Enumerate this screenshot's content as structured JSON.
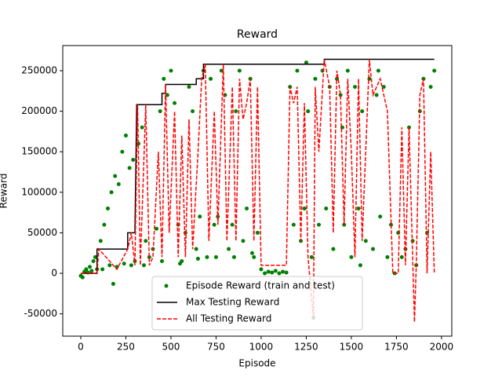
{
  "chart_data": {
    "type": "scatter_line",
    "title": "Reward",
    "xlabel": "Episode",
    "ylabel": "Reward",
    "xlim": [
      -100,
      2057
    ],
    "ylim": [
      -77500,
      281000
    ],
    "xticks": [
      0,
      250,
      500,
      750,
      1000,
      1250,
      1500,
      1750,
      2000
    ],
    "yticks": [
      -50000,
      0,
      50000,
      100000,
      150000,
      200000,
      250000
    ],
    "legend": "lower center",
    "series": [
      {
        "name": "Episode Reward (train and test)",
        "color": "#008000",
        "style": "marker",
        "x": [
          0,
          10,
          20,
          30,
          40,
          50,
          60,
          70,
          80,
          90,
          110,
          130,
          150,
          170,
          190,
          210,
          230,
          250,
          270,
          290,
          120,
          160,
          200,
          240,
          280,
          180,
          300,
          320,
          340,
          360,
          380,
          400,
          420,
          440,
          460,
          480,
          500,
          520,
          540,
          560,
          580,
          600,
          620,
          640,
          660,
          680,
          700,
          350,
          450,
          550,
          650,
          720,
          740,
          760,
          780,
          800,
          820,
          840,
          860,
          880,
          900,
          920,
          940,
          960,
          980,
          750,
          850,
          950,
          1000,
          1020,
          1040,
          1060,
          1080,
          1100,
          1120,
          1140,
          1160,
          1180,
          1200,
          1220,
          1240,
          1260,
          1280,
          1290,
          1300,
          1320,
          1340,
          1360,
          1380,
          1400,
          1420,
          1440,
          1460,
          1480,
          1500,
          1520,
          1540,
          1560,
          1580,
          1600,
          1620,
          1640,
          1660,
          1680,
          1700,
          1720,
          1740,
          1760,
          1780,
          1800,
          1820,
          1840,
          1860,
          1880,
          1900,
          1920,
          1940,
          1960,
          1250,
          1450,
          1550,
          1650
        ],
        "values": [
          -3000,
          -5000,
          2000,
          5000,
          1000,
          8000,
          3000,
          15000,
          20000,
          5000,
          40000,
          60000,
          80000,
          100000,
          120000,
          110000,
          150000,
          170000,
          130000,
          140000,
          5000,
          10000,
          8000,
          12000,
          10000,
          -13000,
          15000,
          160000,
          180000,
          40000,
          20000,
          30000,
          55000,
          200000,
          240000,
          220000,
          250000,
          210000,
          60000,
          15000,
          50000,
          230000,
          200000,
          30000,
          70000,
          250000,
          20000,
          10000,
          15000,
          12000,
          18000,
          240000,
          60000,
          70000,
          250000,
          220000,
          30000,
          60000,
          200000,
          250000,
          40000,
          80000,
          240000,
          20000,
          50000,
          20000,
          20000,
          25000,
          5000,
          0,
          2000,
          1000,
          3000,
          0,
          2000,
          1000,
          230000,
          60000,
          250000,
          40000,
          80000,
          200000,
          20000,
          -55000,
          240000,
          60000,
          250000,
          80000,
          230000,
          30000,
          240000,
          220000,
          60000,
          250000,
          20000,
          230000,
          80000,
          200000,
          40000,
          240000,
          30000,
          220000,
          70000,
          230000,
          20000,
          60000,
          0,
          50000,
          20000,
          30000,
          180000,
          40000,
          10000,
          200000,
          240000,
          50000,
          230000,
          250000,
          260000,
          180000,
          10000,
          250000
        ]
      },
      {
        "name": "Max Testing Reward",
        "color": "#000000",
        "style": "solid",
        "x": [
          0,
          90,
          90,
          260,
          260,
          300,
          310,
          450,
          450,
          470,
          470,
          640,
          640,
          680,
          680,
          1350,
          1350,
          1960
        ],
        "values": [
          0,
          0,
          30000,
          30000,
          50000,
          50000,
          208000,
          208000,
          222000,
          222000,
          233000,
          233000,
          240000,
          240000,
          258000,
          258000,
          264000,
          264000
        ]
      },
      {
        "name": "All Testing Reward",
        "color": "#ff0000",
        "style": "dashed",
        "x": [
          0,
          90,
          100,
          200,
          260,
          280,
          300,
          315,
          330,
          360,
          380,
          400,
          430,
          450,
          470,
          490,
          520,
          540,
          560,
          580,
          600,
          620,
          650,
          670,
          690,
          710,
          740,
          760,
          790,
          810,
          840,
          860,
          880,
          900,
          920,
          940,
          960,
          980,
          1000,
          1140,
          1160,
          1180,
          1200,
          1220,
          1240,
          1260,
          1290,
          1300,
          1320,
          1350,
          1380,
          1400,
          1420,
          1440,
          1460,
          1480,
          1500,
          1520,
          1540,
          1560,
          1600,
          1620,
          1660,
          1700,
          1730,
          1760,
          1780,
          1800,
          1820,
          1850,
          1860,
          1880,
          1900,
          1920,
          1940,
          1960
        ],
        "values": [
          0,
          0,
          30000,
          5000,
          30000,
          50000,
          10000,
          208000,
          10000,
          208000,
          10000,
          20000,
          150000,
          20000,
          233000,
          50000,
          200000,
          20000,
          170000,
          20000,
          190000,
          30000,
          150000,
          240000,
          258000,
          40000,
          200000,
          60000,
          258000,
          40000,
          230000,
          40000,
          240000,
          190000,
          210000,
          240000,
          40000,
          230000,
          10000,
          10000,
          230000,
          210000,
          230000,
          40000,
          210000,
          20000,
          -55000,
          230000,
          150000,
          264000,
          230000,
          50000,
          250000,
          220000,
          60000,
          240000,
          150000,
          20000,
          240000,
          40000,
          264000,
          220000,
          240000,
          200000,
          0,
          0,
          180000,
          10000,
          180000,
          -60000,
          10000,
          220000,
          240000,
          0,
          150000,
          0
        ]
      }
    ]
  }
}
